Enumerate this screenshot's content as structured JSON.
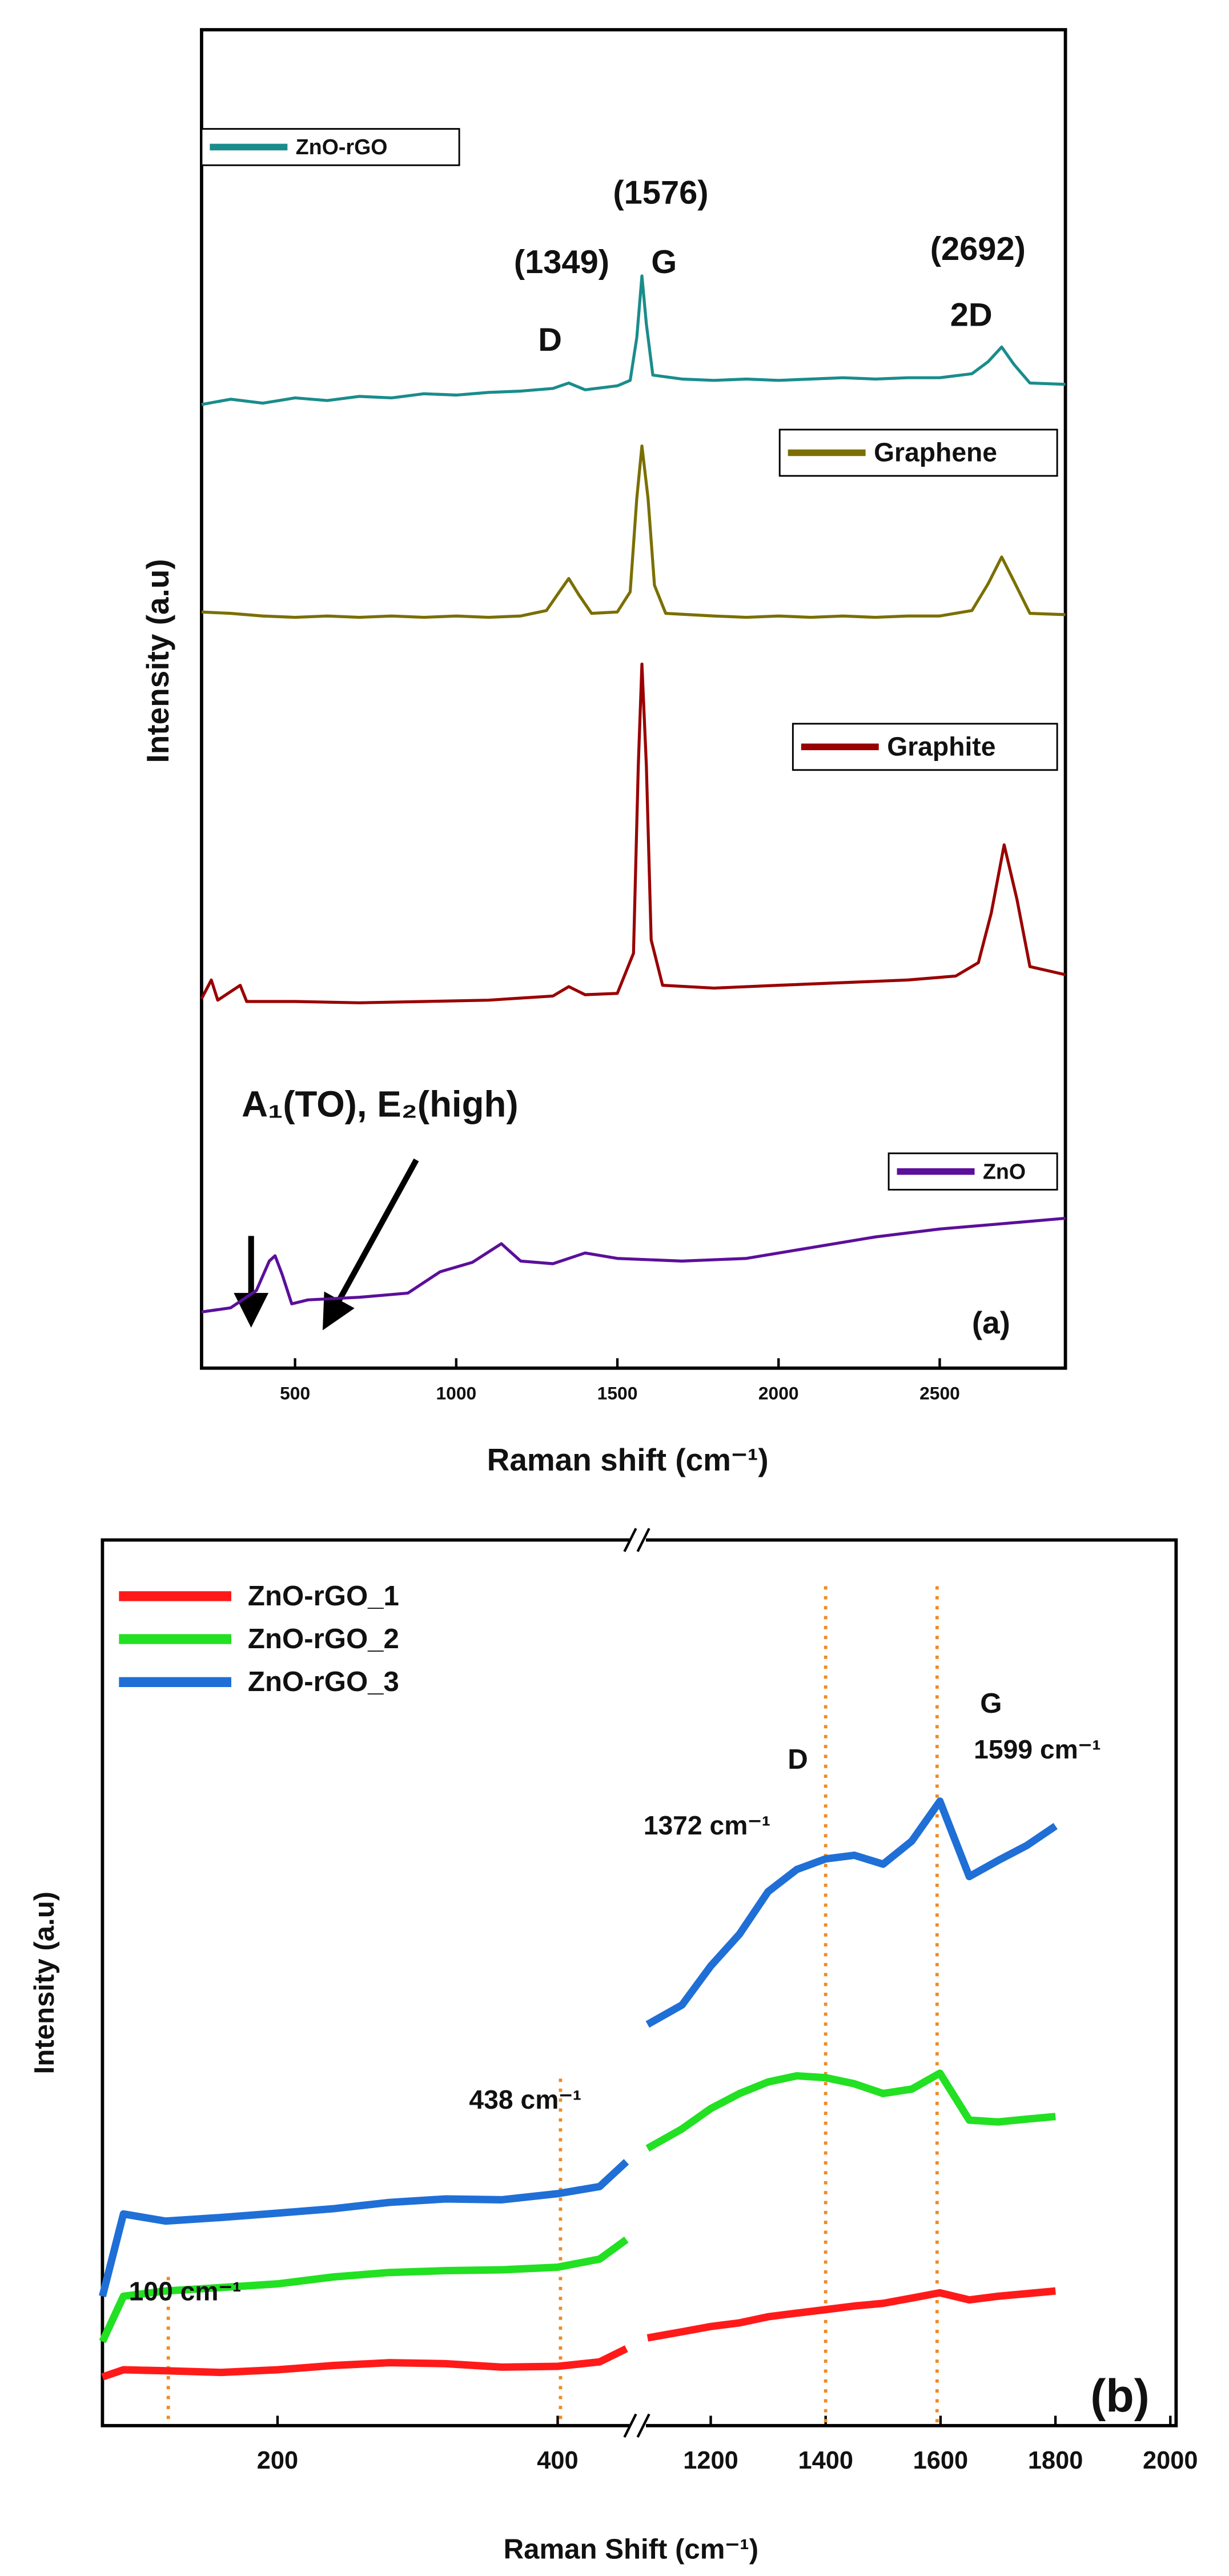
{
  "chart_data": [
    {
      "type": "line",
      "panel": "a",
      "xlabel": "Raman shift (cm⁻¹)",
      "ylabel": "Intensity (a.u)",
      "xlim": [
        210,
        2890
      ],
      "xticks": [
        500,
        1000,
        1500,
        2000,
        2500
      ],
      "ylim": [
        0,
        100
      ],
      "annotations": [
        "(1576)",
        "(1349)",
        "G",
        "D",
        "(2692)",
        "2D",
        "A₁(TO), E₂(high)",
        "(a)"
      ],
      "series": [
        {
          "name": "ZnO-rGO",
          "color": "#1a8c8c",
          "x": [
            210,
            300,
            400,
            500,
            600,
            700,
            800,
            900,
            1000,
            1100,
            1200,
            1300,
            1349,
            1400,
            1500,
            1540,
            1560,
            1576,
            1590,
            1610,
            1700,
            1800,
            1900,
            2000,
            2100,
            2200,
            2300,
            2400,
            2500,
            2600,
            2650,
            2692,
            2730,
            2780,
            2890
          ],
          "values": [
            72.0,
            72.4,
            72.1,
            72.5,
            72.3,
            72.6,
            72.5,
            72.8,
            72.7,
            72.9,
            73.0,
            73.2,
            73.6,
            73.1,
            73.4,
            73.8,
            77,
            81.6,
            78,
            74.2,
            73.9,
            73.8,
            73.9,
            73.8,
            73.9,
            74.0,
            73.9,
            74.0,
            74.0,
            74.3,
            75.2,
            76.3,
            75.0,
            73.6,
            73.5
          ]
        },
        {
          "name": "Graphene",
          "color": "#7a6f00",
          "x": [
            210,
            300,
            400,
            500,
            600,
            700,
            800,
            900,
            1000,
            1100,
            1200,
            1280,
            1320,
            1349,
            1380,
            1420,
            1500,
            1540,
            1560,
            1576,
            1595,
            1615,
            1650,
            1800,
            1900,
            2000,
            2100,
            2200,
            2300,
            2400,
            2500,
            2600,
            2650,
            2692,
            2730,
            2780,
            2890
          ],
          "values": [
            56.5,
            56.4,
            56.2,
            56.1,
            56.2,
            56.1,
            56.2,
            56.1,
            56.2,
            56.1,
            56.2,
            56.6,
            58.0,
            59.0,
            57.8,
            56.4,
            56.5,
            58,
            65,
            68.9,
            65,
            58.5,
            56.4,
            56.2,
            56.1,
            56.2,
            56.1,
            56.2,
            56.1,
            56.2,
            56.2,
            56.6,
            58.6,
            60.6,
            58.8,
            56.4,
            56.3
          ]
        },
        {
          "name": "Graphite",
          "color": "#990000",
          "x": [
            210,
            240,
            260,
            330,
            350,
            500,
            700,
            900,
            1100,
            1300,
            1349,
            1400,
            1500,
            1550,
            1565,
            1576,
            1590,
            1605,
            1640,
            1800,
            2000,
            2200,
            2400,
            2550,
            2620,
            2660,
            2700,
            2740,
            2780,
            2890
          ],
          "values": [
            27.6,
            29,
            27.5,
            28.6,
            27.4,
            27.4,
            27.3,
            27.4,
            27.5,
            27.8,
            28.5,
            27.9,
            28.0,
            31,
            45,
            52.6,
            45,
            32,
            28.6,
            28.4,
            28.6,
            28.8,
            29.0,
            29.3,
            30.3,
            34,
            39.1,
            35,
            30,
            29.4
          ]
        },
        {
          "name": "ZnO",
          "color": "#5b0f9a",
          "x": [
            210,
            300,
            380,
            420,
            438,
            460,
            490,
            540,
            700,
            850,
            950,
            1050,
            1140,
            1200,
            1300,
            1400,
            1500,
            1700,
            1900,
            2100,
            2300,
            2500,
            2700,
            2890
          ],
          "values": [
            4.2,
            4.5,
            5.8,
            8.0,
            8.4,
            7.0,
            4.8,
            5.1,
            5.3,
            5.6,
            7.2,
            7.9,
            9.3,
            8.0,
            7.8,
            8.6,
            8.2,
            8.0,
            8.2,
            9.0,
            9.8,
            10.4,
            10.8,
            11.2
          ]
        }
      ]
    },
    {
      "type": "line",
      "panel": "b",
      "axis_break": true,
      "xlabel": "Raman Shift (cm⁻¹)",
      "ylabel": "Intensity (a.u)",
      "xlim": [
        [
          75,
          450
        ],
        [
          1090,
          2010
        ]
      ],
      "xticks": [
        200,
        400,
        1200,
        1400,
        1600,
        1800,
        2000
      ],
      "ylim": [
        0,
        100
      ],
      "vlines": [
        122,
        402,
        1400,
        1594
      ],
      "annotations": [
        "100 cm⁻¹",
        "438 cm⁻¹",
        "1372 cm⁻¹",
        "D",
        "G",
        "1599 cm⁻¹",
        "(b)"
      ],
      "x": [
        75,
        90,
        120,
        160,
        200,
        240,
        280,
        320,
        360,
        400,
        430,
        449,
        null,
        1090,
        1150,
        1200,
        1250,
        1300,
        1350,
        1400,
        1450,
        1500,
        1550,
        1599,
        1650,
        1700,
        1750,
        1800
      ],
      "series": [
        {
          "name": "ZnO-rGO_1",
          "color": "#ff1a1a",
          "values": [
            5.5,
            6.3,
            6.2,
            6.0,
            6.3,
            6.8,
            7.1,
            7.0,
            6.6,
            6.7,
            7.2,
            8.7,
            null,
            9.9,
            10.6,
            11.2,
            11.6,
            12.3,
            12.7,
            13.1,
            13.5,
            13.8,
            14.4,
            15.0,
            14.2,
            14.6,
            14.9,
            15.2
          ]
        },
        {
          "name": "ZnO-rGO_2",
          "color": "#22e022",
          "values": [
            9.5,
            14.6,
            15.2,
            15.6,
            16.0,
            16.8,
            17.3,
            17.5,
            17.6,
            17.9,
            18.8,
            21.0,
            null,
            31.3,
            33.5,
            35.8,
            37.5,
            38.8,
            39.5,
            39.3,
            38.6,
            37.5,
            38.0,
            39.8,
            34.5,
            34.3,
            34.6,
            34.9
          ]
        },
        {
          "name": "ZnO-rGO_3",
          "color": "#1f6fd6",
          "values": [
            14.6,
            23.9,
            23.1,
            23.5,
            24.0,
            24.5,
            25.2,
            25.6,
            25.5,
            26.2,
            27.0,
            29.8,
            null,
            45.3,
            47.5,
            51.9,
            55.5,
            60.3,
            62.8,
            64.0,
            64.4,
            63.4,
            66.0,
            70.5,
            62.0,
            63.8,
            65.5,
            67.7
          ]
        }
      ]
    }
  ]
}
